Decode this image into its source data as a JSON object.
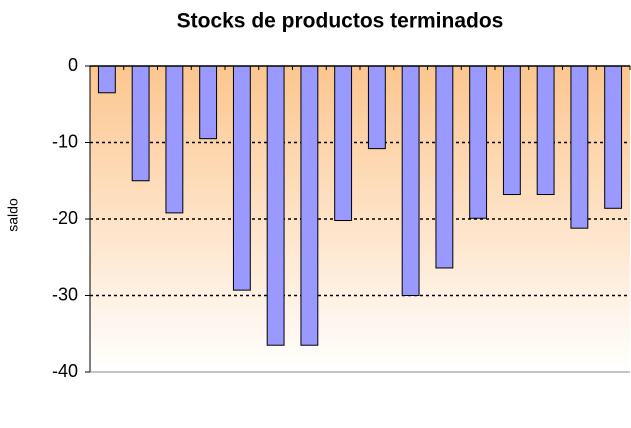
{
  "chart_data": {
    "type": "bar",
    "title": "Stocks de productos terminados",
    "y_label": "saldo",
    "categories": [
      null,
      null,
      null,
      null,
      null,
      null,
      null,
      null,
      null,
      null,
      null,
      null,
      null,
      null,
      null,
      null
    ],
    "values": [
      -3.5,
      -15,
      -19.2,
      -9.5,
      -29.3,
      -36.5,
      -36.5,
      -20.2,
      -10.8,
      -30,
      -26.4,
      -19.9,
      -16.8,
      -16.8,
      -21.2,
      -18.6
    ],
    "color": "#9999ff",
    "ylim": [
      -40,
      0
    ],
    "yticks": [
      -40,
      -30,
      -20,
      -10,
      0
    ],
    "grid": true
  }
}
